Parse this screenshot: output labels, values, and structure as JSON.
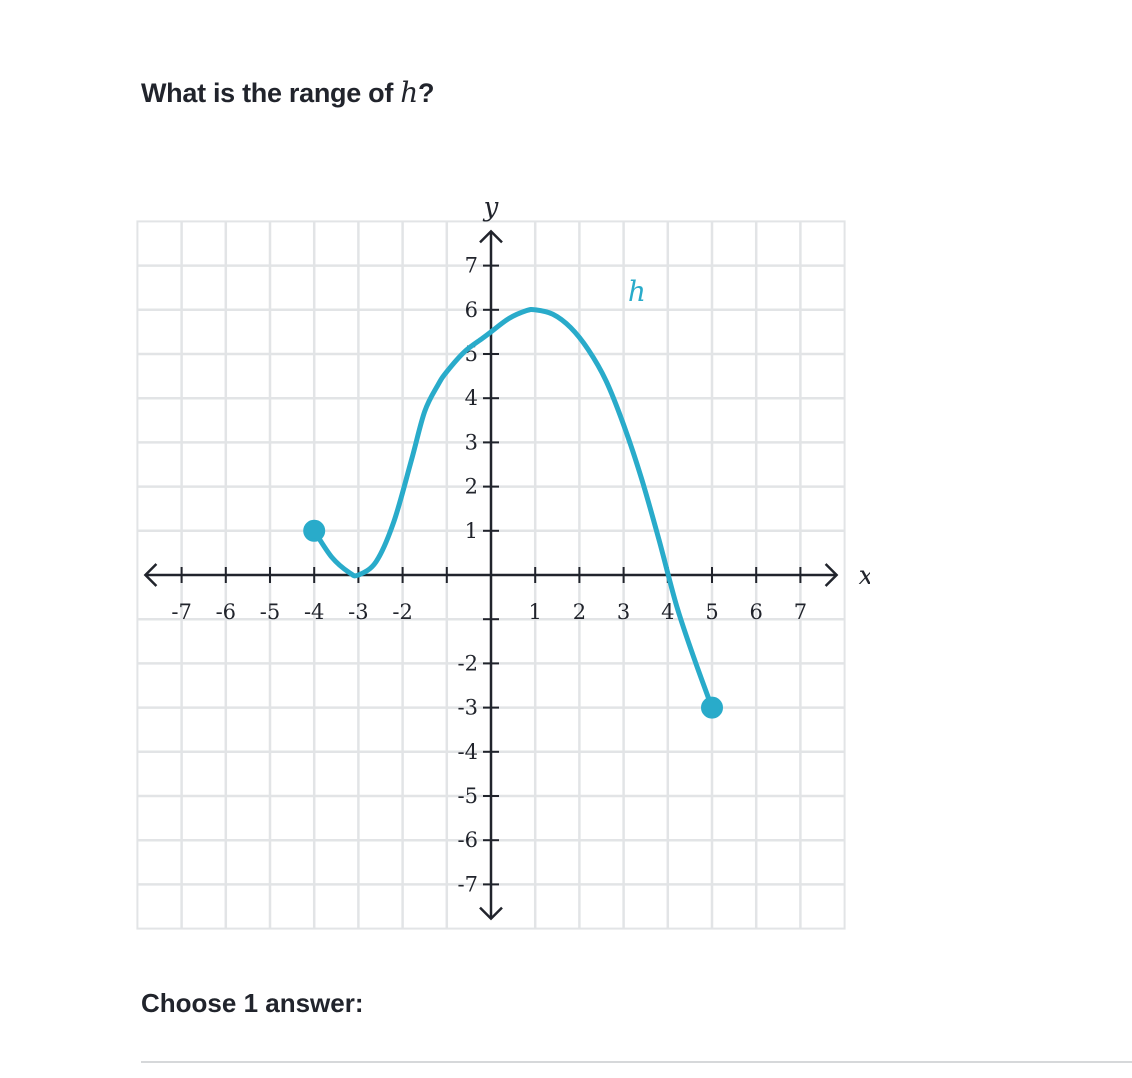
{
  "question": {
    "prefix": "What is the range of ",
    "variable": "h",
    "suffix": "?"
  },
  "prompt": {
    "choose_label": "Choose 1 answer:"
  },
  "chart_data": {
    "type": "line",
    "xlabel": "x",
    "ylabel": "y",
    "xlim": [
      -8,
      8
    ],
    "ylim": [
      -8,
      8
    ],
    "grid": true,
    "x_ticks": [
      -7,
      -6,
      -5,
      -4,
      -3,
      -2,
      1,
      2,
      3,
      4,
      5,
      6,
      7
    ],
    "y_ticks": [
      7,
      6,
      5,
      4,
      3,
      2,
      1,
      -2,
      -3,
      -4,
      -5,
      -6,
      -7
    ],
    "series": [
      {
        "name": "h",
        "color": "#29abca",
        "x": [
          -4,
          -3.6,
          -3.2,
          -3,
          -2.6,
          -2.2,
          -1.8,
          -1.5,
          -1.2,
          -1,
          -0.6,
          -0.2,
          0,
          0.4,
          0.8,
          1,
          1.4,
          1.8,
          2.2,
          2.6,
          3,
          3.4,
          3.8,
          4.2,
          4.6,
          5
        ],
        "y": [
          1,
          0.4,
          0.05,
          0,
          0.3,
          1.2,
          2.6,
          3.7,
          4.3,
          4.6,
          5.05,
          5.35,
          5.5,
          5.8,
          5.98,
          6,
          5.9,
          5.6,
          5.1,
          4.4,
          3.4,
          2.2,
          0.8,
          -0.7,
          -1.9,
          -3
        ],
        "endpoints": [
          {
            "x": -4,
            "y": 1,
            "closed": true
          },
          {
            "x": 5,
            "y": -3,
            "closed": true
          }
        ]
      }
    ]
  }
}
